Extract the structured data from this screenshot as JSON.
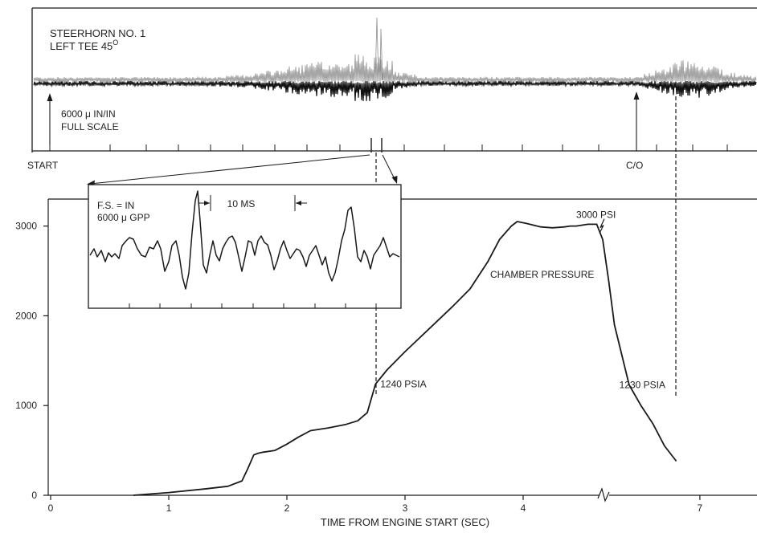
{
  "strain_panel": {
    "title_line1": "STEERHORN NO. 1",
    "title_line2": "LEFT TEE 45",
    "title_superscript": "O",
    "scale_line1": "6000 μ IN/IN",
    "scale_line2": "FULL SCALE",
    "start_label": "START",
    "cutoff_label": "C/O"
  },
  "inset": {
    "fs_line1": "F.S. = IN",
    "fs_line2": "6000 μ GPP",
    "interval_label": "10 MS"
  },
  "chart_data": {
    "type": "line",
    "xlabel": "TIME FROM ENGINE START (SEC)",
    "x_ticks": [
      "0",
      "1",
      "2",
      "3",
      "4",
      "7"
    ],
    "y_ticks": [
      "0",
      "1000",
      "2000",
      "3000"
    ],
    "xlim": [
      0,
      7.5
    ],
    "ylim": [
      0,
      3300
    ],
    "axis_break": "between 4 and 7 seconds",
    "series": [
      {
        "name": "CHAMBER PRESSURE",
        "x": [
          0.7,
          1.0,
          1.3,
          1.5,
          1.62,
          1.67,
          1.72,
          1.76,
          1.8,
          1.9,
          2.0,
          2.1,
          2.2,
          2.35,
          2.5,
          2.6,
          2.68,
          2.75,
          2.85,
          3.0,
          3.2,
          3.4,
          3.55,
          3.7,
          3.8,
          3.9,
          3.95,
          4.05,
          4.3,
          4.5,
          4.7,
          4.8,
          4.9,
          5.1,
          5.25,
          5.35,
          5.45,
          5.55,
          5.8,
          6.0,
          6.2,
          6.4,
          6.6
        ],
        "y": [
          0,
          30,
          70,
          100,
          160,
          300,
          450,
          470,
          480,
          500,
          570,
          650,
          720,
          750,
          790,
          830,
          920,
          1240,
          1400,
          1600,
          1850,
          2100,
          2300,
          2600,
          2850,
          3000,
          3050,
          3030,
          2990,
          2980,
          2990,
          3000,
          3000,
          3020,
          3020,
          2850,
          2400,
          1900,
          1230,
          1000,
          800,
          550,
          380
        ]
      }
    ],
    "annotations": [
      {
        "text": "1240 PSIA",
        "x": 2.75,
        "y": 1240
      },
      {
        "text": "3000 PSI",
        "x": 4.9,
        "y": 3020
      },
      {
        "text": "1230 PSIA",
        "x": 5.55,
        "y": 1230
      },
      {
        "text": "CHAMBER PRESSURE",
        "x": 4.2,
        "y": 2480
      }
    ]
  }
}
